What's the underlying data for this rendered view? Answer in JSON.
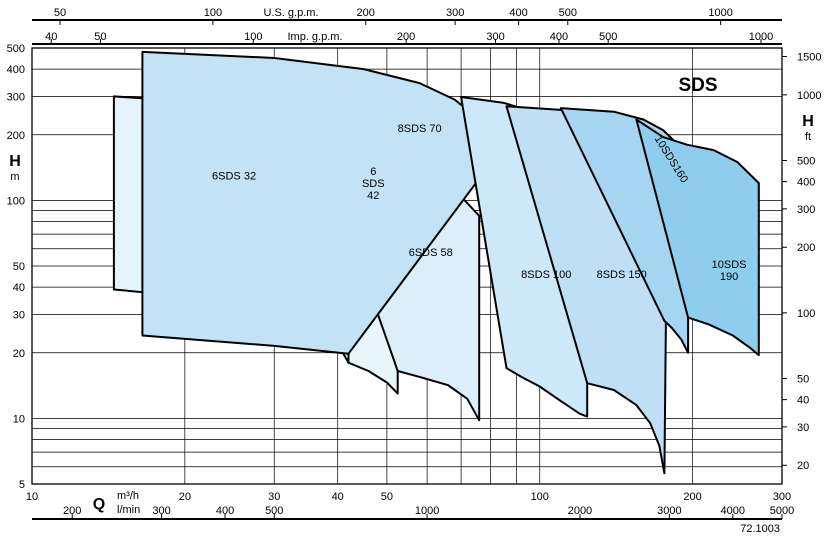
{
  "chart_data": {
    "type": "area",
    "title": "SDS",
    "x_axis": {
      "scale": "log",
      "range_m3h": [
        10,
        300
      ],
      "primary_label": "Q",
      "unit_m3h": "m³/h",
      "unit_lmin": "l/min",
      "ticks_m3h": [
        "10",
        "20",
        "30",
        "40",
        "50",
        "100",
        "200",
        "300"
      ],
      "ticks_lmin": [
        "200",
        "300",
        "400",
        "500",
        "1000",
        "2000",
        "3000",
        "4000",
        "5000"
      ],
      "top_usgpm_label": "U.S. g.p.m.",
      "top_usgpm_ticks": [
        "50",
        "100",
        "200",
        "300",
        "400",
        "500",
        "1000"
      ],
      "top_impgpm_label": "Imp. g.p.m.",
      "top_impgpm_ticks": [
        "40",
        "50",
        "100",
        "200",
        "300",
        "400",
        "500",
        "1000"
      ]
    },
    "y_axis": {
      "scale": "log",
      "range_m": [
        5,
        500
      ],
      "label": "H",
      "unit": "m",
      "ticks_m": [
        "5",
        "10",
        "20",
        "30",
        "40",
        "50",
        "100",
        "200",
        "300",
        "400",
        "500"
      ],
      "right_label": "H",
      "right_unit": "ft",
      "ticks_ft": [
        "20",
        "30",
        "40",
        "50",
        "100",
        "200",
        "300",
        "400",
        "500",
        "1000",
        "1500"
      ]
    },
    "series": [
      {
        "name": "6SDS 32",
        "label_lines": [
          "6SDS 32"
        ],
        "top": [
          [
            14.5,
            300
          ],
          [
            24,
            278
          ],
          [
            32,
            240
          ],
          [
            36,
            205
          ],
          [
            40,
            165
          ],
          [
            42,
            133
          ]
        ],
        "bottom": [
          [
            14.5,
            39
          ],
          [
            24,
            35
          ],
          [
            32,
            31
          ],
          [
            37,
            27
          ],
          [
            40,
            22
          ],
          [
            42,
            18
          ]
        ]
      },
      {
        "name": "6 SDS 42",
        "label_lines": [
          "6",
          "SDS",
          "42"
        ],
        "top": [
          [
            42,
            133
          ],
          [
            46,
            135
          ],
          [
            49,
            130
          ],
          [
            52.5,
            120
          ]
        ],
        "bottom": [
          [
            42,
            18
          ],
          [
            46,
            16.5
          ],
          [
            50,
            14.6
          ],
          [
            52.5,
            13
          ]
        ]
      },
      {
        "name": "6SDS 58",
        "label_lines": [
          "6SDS 58"
        ],
        "top": [
          [
            36,
            205
          ],
          [
            45,
            180
          ],
          [
            55,
            155
          ],
          [
            65,
            125
          ],
          [
            76,
            85
          ]
        ],
        "bottom": [
          [
            52.5,
            16.5
          ],
          [
            58,
            15.5
          ],
          [
            66,
            14.2
          ],
          [
            72,
            12.3
          ],
          [
            76,
            9.8
          ]
        ]
      },
      {
        "name": "8SDS 70",
        "label_lines": [
          "8SDS 70"
        ],
        "top": [
          [
            16.5,
            480
          ],
          [
            30,
            450
          ],
          [
            45,
            400
          ],
          [
            58,
            345
          ],
          [
            68,
            290
          ],
          [
            76,
            235
          ],
          [
            86,
            185
          ]
        ],
        "bottom": [
          [
            16.5,
            24
          ],
          [
            30,
            21.5
          ],
          [
            42,
            19.8
          ]
        ]
      },
      {
        "name": "8SDS 100",
        "label_lines": [
          "8SDS 100"
        ],
        "top": [
          [
            70,
            298
          ],
          [
            85,
            280
          ],
          [
            100,
            250
          ],
          [
            115,
            200
          ],
          [
            124,
            160
          ]
        ],
        "bottom": [
          [
            86,
            17
          ],
          [
            92,
            15.5
          ],
          [
            100,
            14
          ],
          [
            110,
            12
          ],
          [
            120,
            10.5
          ],
          [
            124,
            10.2
          ]
        ]
      },
      {
        "name": "8SDS 150",
        "label_lines": [
          "8SDS 150"
        ],
        "top": [
          [
            86,
            270
          ],
          [
            110,
            260
          ],
          [
            135,
            240
          ],
          [
            155,
            210
          ],
          [
            165,
            175
          ],
          [
            175,
            110
          ],
          [
            178,
            80
          ]
        ],
        "bottom": [
          [
            124,
            14.5
          ],
          [
            140,
            13.5
          ],
          [
            155,
            11.5
          ],
          [
            165,
            9.5
          ],
          [
            172,
            7.5
          ],
          [
            176,
            5.6
          ]
        ]
      },
      {
        "name": "10SDS 160",
        "label_lines": [
          "10SDS160"
        ],
        "top": [
          [
            110,
            265
          ],
          [
            140,
            255
          ],
          [
            160,
            235
          ],
          [
            175,
            210
          ],
          [
            185,
            185
          ],
          [
            196,
            148
          ]
        ],
        "bottom": [
          [
            176,
            28
          ],
          [
            182,
            26
          ],
          [
            190,
            23
          ],
          [
            196,
            20
          ]
        ]
      },
      {
        "name": "10SDS 190",
        "label_lines": [
          "10SDS",
          "190"
        ],
        "top": [
          [
            155,
            235
          ],
          [
            175,
            195
          ],
          [
            195,
            180
          ],
          [
            220,
            170
          ],
          [
            245,
            150
          ],
          [
            270,
            120
          ]
        ],
        "bottom": [
          [
            196,
            29
          ],
          [
            215,
            27
          ],
          [
            240,
            24
          ],
          [
            260,
            21
          ],
          [
            270,
            19.5
          ]
        ]
      }
    ],
    "grid": true,
    "legend": "none"
  },
  "footnote": "72.1003",
  "colors": {
    "fills": [
      "#e5f3fc",
      "#e9f5fd",
      "#dbeefa",
      "#c3e2f6",
      "#cde8f9",
      "#bfdff4",
      "#a5d5f0",
      "#8fcdee"
    ]
  }
}
